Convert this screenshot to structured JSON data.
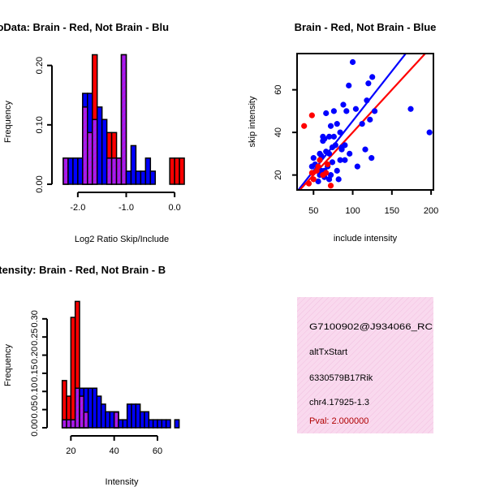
{
  "chart_data": [
    {
      "type": "histogram",
      "title": "RatioData: Brain - Red, Not Brain - Blu",
      "xlabel": "Log2 Ratio Skip/Include",
      "ylabel": "Frequency",
      "xlim": [
        -2.4,
        0.35
      ],
      "ylim": [
        0,
        0.22
      ],
      "xticks": [
        -2.0,
        -1.0,
        0.0
      ],
      "xtick_labels": [
        "-2.0",
        "-1.0",
        "0.0"
      ],
      "yticks": [
        0.0,
        0.1,
        0.2
      ],
      "ytick_labels": [
        "0.00",
        "0.10",
        "0.20"
      ],
      "series": [
        {
          "name": "Not Brain",
          "color": "#0000ff",
          "bins": [
            {
              "x0": -2.3,
              "x1": -2.2,
              "value": 0.044
            },
            {
              "x0": -2.2,
              "x1": -2.1,
              "value": 0.044
            },
            {
              "x0": -2.1,
              "x1": -2.0,
              "value": 0.044
            },
            {
              "x0": -2.0,
              "x1": -1.9,
              "value": 0.044
            },
            {
              "x0": -1.9,
              "x1": -1.8,
              "value": 0.153
            },
            {
              "x0": -1.8,
              "x1": -1.7,
              "value": 0.153
            },
            {
              "x0": -1.7,
              "x1": -1.6,
              "value": 0.109
            },
            {
              "x0": -1.6,
              "x1": -1.5,
              "value": 0.13
            },
            {
              "x0": -1.5,
              "x1": -1.4,
              "value": 0.109
            },
            {
              "x0": -1.4,
              "x1": -1.3,
              "value": 0.044
            },
            {
              "x0": -1.3,
              "x1": -1.2,
              "value": 0.044
            },
            {
              "x0": -1.2,
              "x1": -1.1,
              "value": 0.044
            },
            {
              "x0": -1.1,
              "x1": -1.0,
              "value": 0.218
            },
            {
              "x0": -1.0,
              "x1": -0.9,
              "value": 0.022
            },
            {
              "x0": -0.9,
              "x1": -0.8,
              "value": 0.065
            },
            {
              "x0": -0.8,
              "x1": -0.7,
              "value": 0.022
            },
            {
              "x0": -0.7,
              "x1": -0.6,
              "value": 0.022
            },
            {
              "x0": -0.6,
              "x1": -0.5,
              "value": 0.044
            },
            {
              "x0": -0.5,
              "x1": -0.4,
              "value": 0.022
            }
          ]
        },
        {
          "name": "Brain",
          "color": "#ff0000",
          "bins": [
            {
              "x0": -2.3,
              "x1": -2.2,
              "value": 0.044
            },
            {
              "x0": -1.9,
              "x1": -1.8,
              "value": 0.13
            },
            {
              "x0": -1.8,
              "x1": -1.7,
              "value": 0.087
            },
            {
              "x0": -1.7,
              "x1": -1.6,
              "value": 0.218
            },
            {
              "x0": -1.4,
              "x1": -1.3,
              "value": 0.087
            },
            {
              "x0": -1.3,
              "x1": -1.2,
              "value": 0.087
            },
            {
              "x0": -1.2,
              "x1": -1.1,
              "value": 0.044
            },
            {
              "x0": -1.1,
              "x1": -1.0,
              "value": 0.218
            },
            {
              "x0": -0.1,
              "x1": 0.0,
              "value": 0.044
            },
            {
              "x0": 0.0,
              "x1": 0.1,
              "value": 0.044
            },
            {
              "x0": 0.1,
              "x1": 0.2,
              "value": 0.044
            }
          ]
        }
      ]
    },
    {
      "type": "scatter",
      "title": "Brain - Red, Not Brain - Blue",
      "xlabel": "include intensity",
      "ylabel": "skip intensity",
      "xlim": [
        29,
        203
      ],
      "ylim": [
        13,
        77
      ],
      "xticks": [
        50,
        100,
        150,
        200
      ],
      "xtick_labels": [
        "50",
        "100",
        "150",
        "200"
      ],
      "yticks": [
        20,
        40,
        60
      ],
      "ytick_labels": [
        "20",
        "40",
        "60"
      ],
      "series": [
        {
          "name": "Not Brain",
          "color": "#0000ff",
          "points": [
            [
              100,
              73
            ],
            [
              125,
              66
            ],
            [
              95,
              62
            ],
            [
              120,
              63
            ],
            [
              118,
              55
            ],
            [
              128,
              50
            ],
            [
              112,
              44
            ],
            [
              80,
              44
            ],
            [
              72,
              43
            ],
            [
              70,
              38
            ],
            [
              64,
              37
            ],
            [
              76,
              38
            ],
            [
              62,
              36
            ],
            [
              58,
              30
            ],
            [
              60,
              29
            ],
            [
              70,
              30
            ],
            [
              84,
              40
            ],
            [
              74,
              33
            ],
            [
              66,
              31
            ],
            [
              90,
              34
            ],
            [
              78,
              34
            ],
            [
              86,
              33
            ],
            [
              50,
              28
            ],
            [
              52,
              25
            ],
            [
              48,
              24
            ],
            [
              60,
              22
            ],
            [
              74,
              26
            ],
            [
              68,
              24
            ],
            [
              64,
              22
            ],
            [
              72,
              20
            ],
            [
              80,
              22
            ],
            [
              84,
              27
            ],
            [
              90,
              27
            ],
            [
              96,
              30
            ],
            [
              106,
              24
            ],
            [
              116,
              32
            ],
            [
              124,
              28
            ],
            [
              104,
              51
            ],
            [
              92,
              50
            ],
            [
              88,
              53
            ],
            [
              76,
              50
            ],
            [
              66,
              49
            ],
            [
              62,
              38
            ],
            [
              58,
              20
            ],
            [
              70,
              18
            ],
            [
              82,
              18
            ],
            [
              56,
              17
            ],
            [
              174,
              51
            ],
            [
              198,
              40
            ],
            [
              122,
              46
            ],
            [
              64,
              19
            ],
            [
              86,
              32
            ]
          ]
        },
        {
          "name": "Brain",
          "color": "#ff0000",
          "points": [
            [
              38,
              43
            ],
            [
              48,
              48
            ],
            [
              48,
              21
            ],
            [
              54,
              22
            ],
            [
              44,
              16
            ],
            [
              50,
              18
            ],
            [
              58,
              27
            ],
            [
              62,
              20
            ],
            [
              56,
              24
            ],
            [
              66,
              21
            ],
            [
              72,
              15
            ],
            [
              68,
              25
            ]
          ]
        }
      ],
      "fit_lines": [
        {
          "name": "Not Brain fit",
          "color": "#0000ff",
          "x": [
            29,
            203
          ],
          "y": [
            12.2,
            93.5
          ]
        },
        {
          "name": "Brain fit",
          "color": "#ff0000",
          "x": [
            29,
            203
          ],
          "y": [
            11.6,
            81.2
          ]
        }
      ]
    },
    {
      "type": "histogram",
      "title": "ne Itensity: Brain - Red, Not Brain - B",
      "xlabel": "Intensity",
      "ylabel": "Frequency",
      "xlim": [
        12,
        75
      ],
      "ylim": [
        0,
        0.36
      ],
      "xticks": [
        20,
        40,
        60
      ],
      "xtick_labels": [
        "20",
        "40",
        "60"
      ],
      "yticks": [
        0.0,
        0.05,
        0.1,
        0.15,
        0.2,
        0.25,
        0.3
      ],
      "ytick_labels": [
        "0.00",
        "0.05",
        "0.10",
        "0.15",
        "0.20",
        "0.25",
        "0.30"
      ],
      "series": [
        {
          "name": "Not Brain",
          "color": "#0000ff",
          "bins": [
            {
              "x0": 16,
              "x1": 18,
              "value": 0.022
            },
            {
              "x0": 18,
              "x1": 20,
              "value": 0.022
            },
            {
              "x0": 20,
              "x1": 22,
              "value": 0.022
            },
            {
              "x0": 22,
              "x1": 24,
              "value": 0.109
            },
            {
              "x0": 24,
              "x1": 26,
              "value": 0.109
            },
            {
              "x0": 26,
              "x1": 28,
              "value": 0.109
            },
            {
              "x0": 28,
              "x1": 30,
              "value": 0.109
            },
            {
              "x0": 30,
              "x1": 32,
              "value": 0.109
            },
            {
              "x0": 32,
              "x1": 34,
              "value": 0.087
            },
            {
              "x0": 34,
              "x1": 36,
              "value": 0.065
            },
            {
              "x0": 36,
              "x1": 38,
              "value": 0.044
            },
            {
              "x0": 38,
              "x1": 40,
              "value": 0.044
            },
            {
              "x0": 40,
              "x1": 42,
              "value": 0.044
            },
            {
              "x0": 42,
              "x1": 44,
              "value": 0.022
            },
            {
              "x0": 44,
              "x1": 46,
              "value": 0.022
            },
            {
              "x0": 46,
              "x1": 48,
              "value": 0.065
            },
            {
              "x0": 48,
              "x1": 50,
              "value": 0.065
            },
            {
              "x0": 50,
              "x1": 52,
              "value": 0.065
            },
            {
              "x0": 52,
              "x1": 54,
              "value": 0.044
            },
            {
              "x0": 54,
              "x1": 56,
              "value": 0.044
            },
            {
              "x0": 56,
              "x1": 58,
              "value": 0.022
            },
            {
              "x0": 58,
              "x1": 60,
              "value": 0.022
            },
            {
              "x0": 60,
              "x1": 62,
              "value": 0.022
            },
            {
              "x0": 62,
              "x1": 64,
              "value": 0.022
            },
            {
              "x0": 64,
              "x1": 66,
              "value": 0.022
            },
            {
              "x0": 68,
              "x1": 70,
              "value": 0.022
            }
          ]
        },
        {
          "name": "Brain",
          "color": "#ff0000",
          "bins": [
            {
              "x0": 16,
              "x1": 18,
              "value": 0.13
            },
            {
              "x0": 18,
              "x1": 20,
              "value": 0.087
            },
            {
              "x0": 20,
              "x1": 22,
              "value": 0.304
            },
            {
              "x0": 22,
              "x1": 24,
              "value": 0.348
            },
            {
              "x0": 24,
              "x1": 26,
              "value": 0.087
            },
            {
              "x0": 26,
              "x1": 28,
              "value": 0.043
            },
            {
              "x0": 40,
              "x1": 42,
              "value": 0.043
            }
          ]
        }
      ]
    }
  ],
  "info_panel": {
    "lines": [
      "G7100902@J934066_RC",
      "altTxStart",
      "6330579B17Rik",
      "chr4.17925-1.3"
    ],
    "pval": "Pval: 2.000000",
    "background_color": "#f9d9ee",
    "pval_color": "#b00000"
  },
  "colors": {
    "brain": "#ff0000",
    "not_brain": "#0000ff",
    "overlap": "#a020f0"
  }
}
